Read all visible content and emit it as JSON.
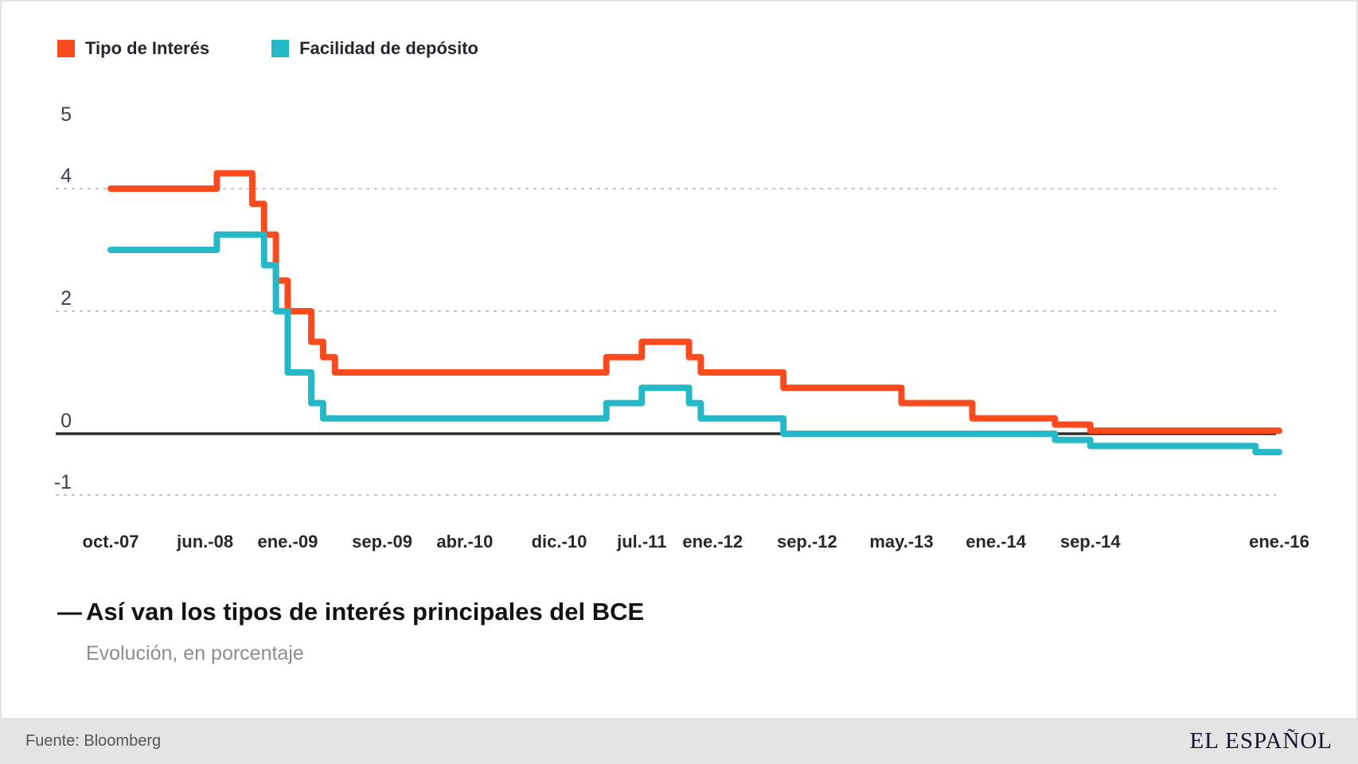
{
  "header": {
    "dash": "—",
    "title": "Así van los tipos de interés principales del BCE",
    "subtitle": "Evolución, en porcentaje"
  },
  "footer": {
    "source": "Fuente: Bloomberg",
    "brand": "EL ESPAÑOL"
  },
  "colors": {
    "accent_orange": "#fa4a1e",
    "accent_teal": "#25b9c8",
    "grid": "#c5c5c5",
    "zero_axis": "#2e2e2e",
    "y_label": "#3e3e4c",
    "x_label": "#27272e"
  },
  "chart_data": {
    "type": "line",
    "subtype": "step-after",
    "title": "Así van los tipos de interés principales del BCE",
    "ylabel": "porcentaje",
    "ylim": [
      -1,
      5
    ],
    "x_unit": "months since oct-2007",
    "x_range_months": [
      0,
      99
    ],
    "grid": "dashed horizontal at 4, 2, -1; solid zero line",
    "legend_position": "top-left",
    "y_labels": [
      {
        "value": 5,
        "text": "5",
        "line": "none"
      },
      {
        "value": 4,
        "text": "4",
        "line": "dashed"
      },
      {
        "value": 2,
        "text": "2",
        "line": "dashed"
      },
      {
        "value": 0,
        "text": "0",
        "line": "solid"
      },
      {
        "value": -1,
        "text": "-1",
        "line": "dashed"
      }
    ],
    "x_ticks": [
      {
        "label": "oct.-07",
        "m": 0
      },
      {
        "label": "jun.-08",
        "m": 8
      },
      {
        "label": "ene.-09",
        "m": 15
      },
      {
        "label": "sep.-09",
        "m": 23
      },
      {
        "label": "abr.-10",
        "m": 30
      },
      {
        "label": "dic.-10",
        "m": 38
      },
      {
        "label": "jul.-11",
        "m": 45
      },
      {
        "label": "ene.-12",
        "m": 51
      },
      {
        "label": "sep.-12",
        "m": 59
      },
      {
        "label": "may.-13",
        "m": 67
      },
      {
        "label": "ene.-14",
        "m": 75
      },
      {
        "label": "sep.-14",
        "m": 83
      },
      {
        "label": "ene.-16",
        "m": 99
      }
    ],
    "series": [
      {
        "name": "Tipo de Interés",
        "color": "#fa4a1e",
        "points": [
          {
            "m": 0,
            "v": 4.0
          },
          {
            "m": 9,
            "v": 4.25
          },
          {
            "m": 12,
            "v": 3.75
          },
          {
            "m": 13,
            "v": 3.25
          },
          {
            "m": 14,
            "v": 2.5
          },
          {
            "m": 15,
            "v": 2.0
          },
          {
            "m": 17,
            "v": 1.5
          },
          {
            "m": 18,
            "v": 1.25
          },
          {
            "m": 19,
            "v": 1.0
          },
          {
            "m": 42,
            "v": 1.25
          },
          {
            "m": 45,
            "v": 1.5
          },
          {
            "m": 49,
            "v": 1.25
          },
          {
            "m": 50,
            "v": 1.0
          },
          {
            "m": 57,
            "v": 0.75
          },
          {
            "m": 67,
            "v": 0.5
          },
          {
            "m": 73,
            "v": 0.25
          },
          {
            "m": 80,
            "v": 0.15
          },
          {
            "m": 83,
            "v": 0.05
          }
        ]
      },
      {
        "name": "Facilidad de depósito",
        "color": "#25b9c8",
        "points": [
          {
            "m": 0,
            "v": 3.0
          },
          {
            "m": 9,
            "v": 3.25
          },
          {
            "m": 13,
            "v": 2.75
          },
          {
            "m": 14,
            "v": 2.0
          },
          {
            "m": 15,
            "v": 1.0
          },
          {
            "m": 17,
            "v": 0.5
          },
          {
            "m": 18,
            "v": 0.25
          },
          {
            "m": 42,
            "v": 0.5
          },
          {
            "m": 45,
            "v": 0.75
          },
          {
            "m": 49,
            "v": 0.5
          },
          {
            "m": 50,
            "v": 0.25
          },
          {
            "m": 57,
            "v": 0.0
          },
          {
            "m": 80,
            "v": -0.1
          },
          {
            "m": 83,
            "v": -0.2
          },
          {
            "m": 97,
            "v": -0.3
          }
        ]
      }
    ]
  }
}
